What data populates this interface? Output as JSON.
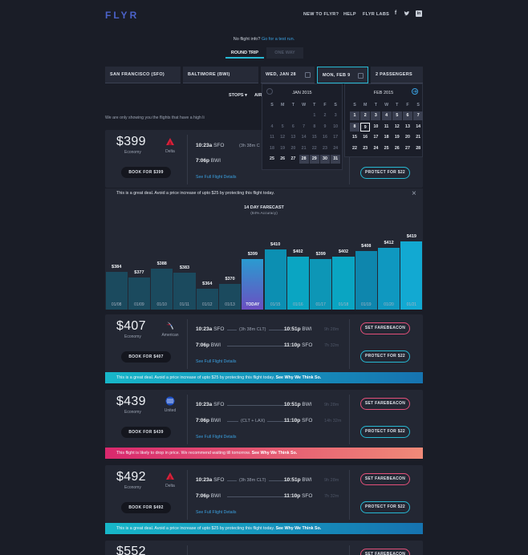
{
  "header": {
    "logo": "FLYR",
    "nav": [
      "NEW TO FLYR?",
      "HELP",
      "FLYR LABS"
    ],
    "social": [
      "f-icon",
      "twitter-icon",
      "linkedin-icon"
    ]
  },
  "hint": {
    "text": "No flight info?",
    "link": "Go for a test run."
  },
  "trip": {
    "round": "ROUND TRIP",
    "one": "ONE WAY"
  },
  "search": {
    "from": "SAN FRANCISCO (SFO)",
    "to": "BALTIMORE (BWI)",
    "depart": "WED, JAN 28",
    "return": "MON, FEB 9",
    "passengers": "2 PASSENGERS"
  },
  "filters": {
    "stops": "STOPS ▾",
    "air": "AIR"
  },
  "info": "We are only showing you the flights that have a high li",
  "calendar": {
    "weekdays": [
      "S",
      "M",
      "T",
      "W",
      "T",
      "F",
      "S"
    ],
    "jan": {
      "title": "JAN 2015",
      "rows": [
        [
          "",
          "",
          "",
          "",
          "1",
          "2",
          "3"
        ],
        [
          "4",
          "5",
          "6",
          "7",
          "8",
          "9",
          "10"
        ],
        [
          "11",
          "12",
          "13",
          "14",
          "15",
          "16",
          "17"
        ],
        [
          "18",
          "19",
          "20",
          "21",
          "22",
          "23",
          "24"
        ],
        [
          "25",
          "26",
          "27",
          "28",
          "29",
          "30",
          "31"
        ]
      ]
    },
    "feb": {
      "title": "FEB 2015",
      "rows": [
        [
          "1",
          "2",
          "3",
          "4",
          "5",
          "6",
          "7"
        ],
        [
          "8",
          "9",
          "10",
          "11",
          "12",
          "13",
          "14"
        ],
        [
          "15",
          "16",
          "17",
          "18",
          "19",
          "20",
          "21"
        ],
        [
          "22",
          "23",
          "24",
          "25",
          "26",
          "27",
          "28"
        ]
      ]
    }
  },
  "card1": {
    "price": "$399",
    "cls": "Economy",
    "airline": "Delta",
    "out_t": "10:23a",
    "out_ap": "SFO",
    "out_dur": "(3h 38m C",
    "ret_t": "7:06p",
    "ret_ap": "BWI",
    "book": "BOOK FOR $399",
    "details": "See Full Flight Details",
    "protect": "PROTECT FOR $22"
  },
  "forecast": {
    "deal": "This is a great deal. Avoid a price increase of upto $25 by protecting this flight today.",
    "title": "14 DAY FARECAST",
    "accuracy": "(84% Accuracy)"
  },
  "chart_data": {
    "type": "bar",
    "title": "14 DAY FARECAST",
    "subtitle": "(84% Accuracy)",
    "categories": [
      "01/08",
      "01/09",
      "01/10",
      "01/11",
      "01/12",
      "01/13",
      "TODAY",
      "01/15",
      "01/16",
      "01/17",
      "01/18",
      "01/19",
      "01/20",
      "01/21"
    ],
    "values": [
      384,
      377,
      388,
      383,
      364,
      370,
      399,
      410,
      402,
      399,
      402,
      408,
      412,
      419
    ],
    "labels": [
      "$384",
      "$377",
      "$388",
      "$383",
      "$364",
      "$370",
      "$399",
      "$410",
      "$402",
      "$399",
      "$402",
      "$408",
      "$412",
      "$419"
    ],
    "ylim": [
      340,
      425
    ]
  },
  "cards": [
    {
      "price": "$407",
      "cls": "Economy",
      "airline": "American",
      "out_t": "10:23a",
      "out_ap": "SFO",
      "out_dur": "(3h 38m CLT)",
      "out_at": "10:51p",
      "out_aap": "BWI",
      "out_len": "9h 28m",
      "ret_t": "7:06p",
      "ret_ap": "BWI",
      "ret_at": "11:10p",
      "ret_aap": "SFO",
      "ret_len": "7h 32m",
      "ret_dur": "",
      "book": "BOOK FOR $407",
      "details": "See Full Flight Details",
      "fb": "SET FAREBEACON",
      "protect": "PROTECT FOR $22",
      "band_text": "This is a great deal. Avoid a price increase of upto $25 by protecting this flight today.",
      "band_link": "See Why We Think So."
    },
    {
      "price": "$439",
      "cls": "Economy",
      "airline": "United",
      "out_t": "10:23a",
      "out_ap": "SFO",
      "out_dur": "",
      "out_at": "10:51p",
      "out_aap": "BWI",
      "out_len": "9h 28m",
      "ret_t": "7:06p",
      "ret_ap": "BWI",
      "ret_at": "11:10p",
      "ret_aap": "SFO",
      "ret_len": "14h 32m",
      "ret_dur": "(CLT + LAX)",
      "book": "BOOK FOR $439",
      "details": "See Full Flight Details",
      "fb": "SET FAREBEACON",
      "protect": "PROTECT FOR $22",
      "band_text": "This flight is likely to drop in price. We recommend waiting till tomorrow.",
      "band_link": "See Why We Think So."
    },
    {
      "price": "$492",
      "cls": "Economy",
      "airline": "Delta",
      "out_t": "10:23a",
      "out_ap": "SFO",
      "out_dur": "(3h 38m CLT)",
      "out_at": "10:51p",
      "out_aap": "BWI",
      "out_len": "9h 28m",
      "ret_t": "7:06p",
      "ret_ap": "BWI",
      "ret_at": "11:10p",
      "ret_aap": "SFO",
      "ret_len": "7h 32m",
      "ret_dur": "",
      "book": "BOOK FOR $492",
      "details": "See Full Flight Details",
      "fb": "SET FAREBEACON",
      "protect": "PROTECT FOR $22",
      "band_text": "This is a great deal. Avoid a price increase of upto $25 by protecting this flight today.",
      "band_link": "See Why We Think So."
    },
    {
      "price": "$552",
      "fb": "SET FAREBEACON"
    }
  ],
  "colors": {
    "accent": "#27b9d3",
    "fb": "#e3507a",
    "link": "#3aa0e0",
    "today": "#6b4fc2"
  }
}
